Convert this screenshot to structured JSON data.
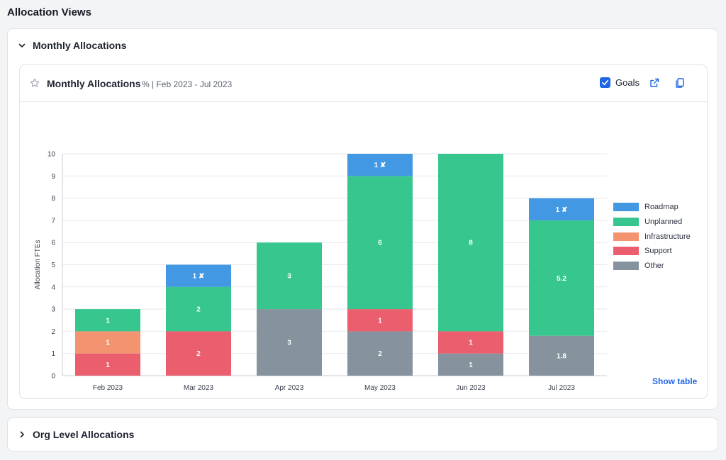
{
  "page": {
    "title": "Allocation Views"
  },
  "sections": {
    "monthly": {
      "label": "Monthly Allocations"
    },
    "org": {
      "label": "Org Level Allocations"
    }
  },
  "card": {
    "title": "Monthly Allocations",
    "subtitle": "% | Feb 2023 - Jul 2023",
    "goals_label": "Goals",
    "goals_checked": true,
    "show_table_label": "Show table",
    "icons": {
      "star": "star-icon",
      "open": "external-link-icon",
      "copy": "copy-icon"
    }
  },
  "legend": [
    {
      "label": "Roadmap",
      "color": "#4398e3"
    },
    {
      "label": "Unplanned",
      "color": "#37c78e"
    },
    {
      "label": "Infrastructure",
      "color": "#f3936f"
    },
    {
      "label": "Support",
      "color": "#ea5e6e"
    },
    {
      "label": "Other",
      "color": "#86929d"
    }
  ],
  "chart_data": {
    "type": "bar",
    "stacked": true,
    "categories": [
      "Feb 2023",
      "Mar 2023",
      "Apr 2023",
      "May 2023",
      "Jun 2023",
      "Jul 2023"
    ],
    "ylabel": "Allocation FTEs",
    "ylim": [
      0,
      10
    ],
    "yticks": [
      0,
      1,
      2,
      3,
      4,
      5,
      6,
      7,
      8,
      9,
      10
    ],
    "grid": true,
    "legend_position": "right",
    "series": [
      {
        "name": "Other",
        "color": "#86929d",
        "values": [
          0,
          0,
          3,
          2,
          1,
          1.8
        ]
      },
      {
        "name": "Support",
        "color": "#ea5e6e",
        "values": [
          1,
          2,
          0,
          1,
          1,
          0
        ]
      },
      {
        "name": "Infrastructure",
        "color": "#f3936f",
        "values": [
          1,
          0,
          0,
          0,
          0,
          0
        ]
      },
      {
        "name": "Unplanned",
        "color": "#37c78e",
        "values": [
          1,
          2,
          3,
          6,
          8,
          5.2
        ]
      },
      {
        "name": "Roadmap",
        "color": "#4398e3",
        "values": [
          0,
          1,
          0,
          1,
          0,
          1
        ]
      }
    ],
    "label_suffix": {
      "Roadmap": " ✘"
    }
  }
}
